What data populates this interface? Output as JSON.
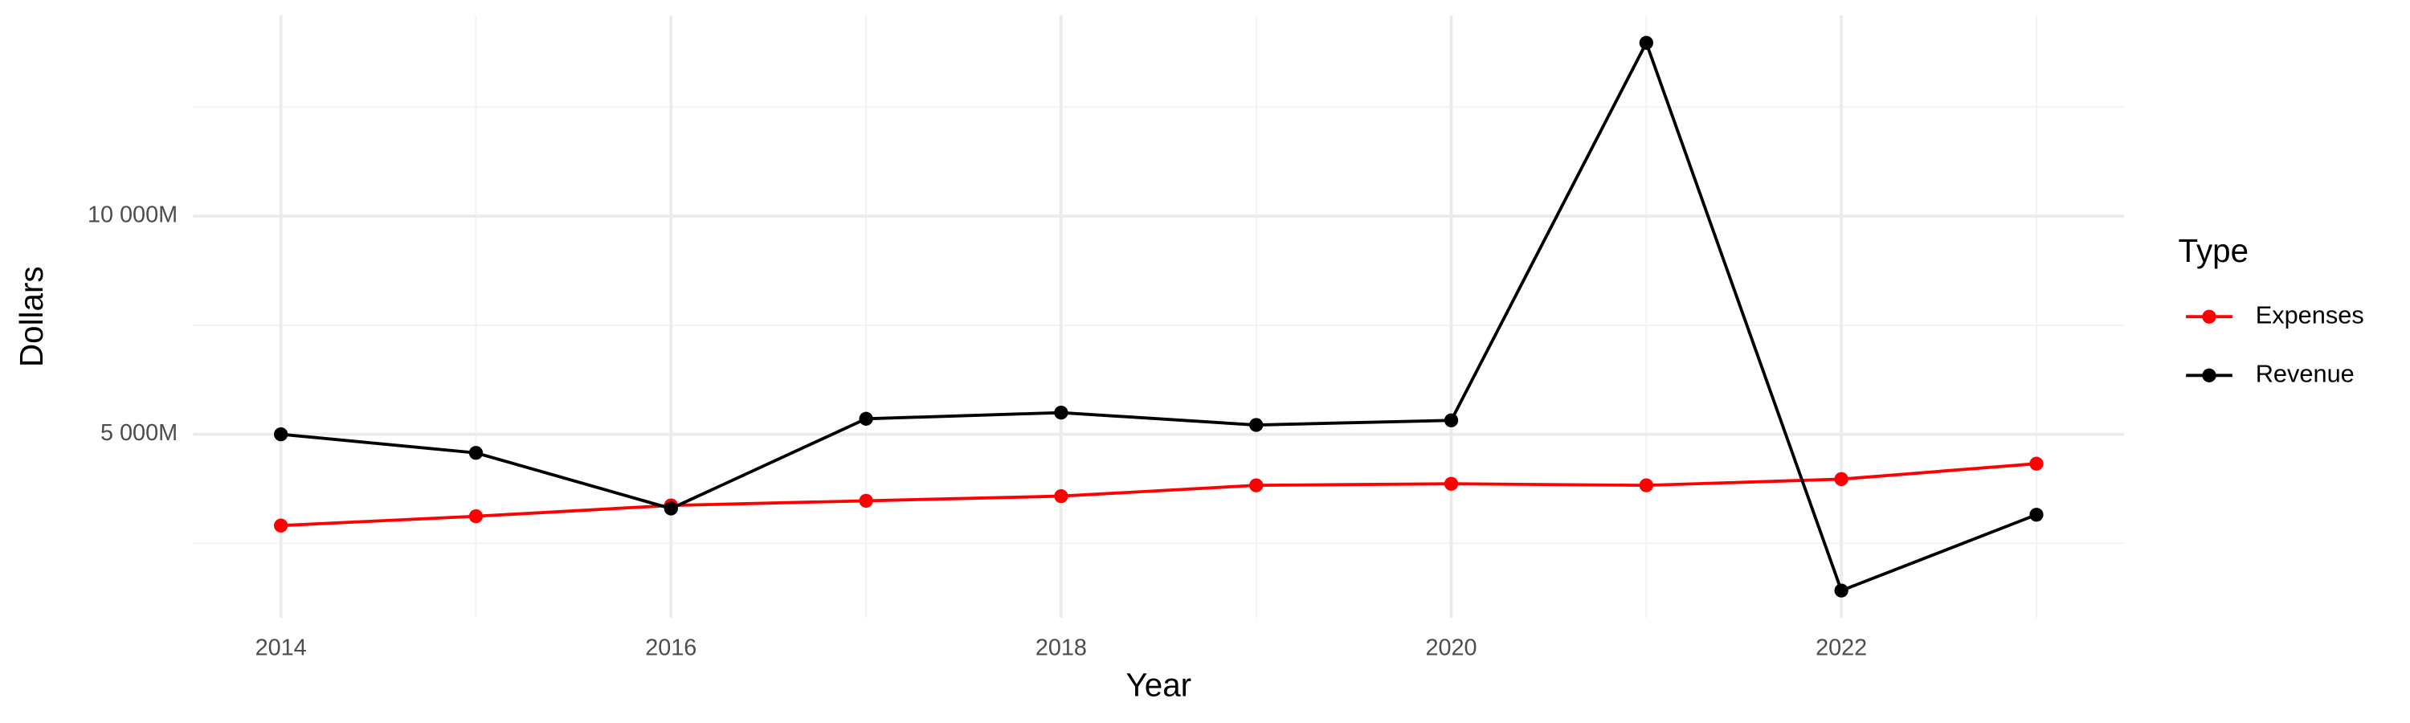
{
  "chart_data": {
    "type": "line",
    "x_label": "Year",
    "y_label": "Dollars",
    "legend_title": "Type",
    "legend_position": "right",
    "x": [
      2014,
      2015,
      2016,
      2017,
      2018,
      2019,
      2020,
      2021,
      2022,
      2023
    ],
    "series": [
      {
        "name": "Expenses",
        "color": "#ff0000",
        "values": [
          2908,
          3121,
          3369,
          3475,
          3582,
          3830,
          3865,
          3830,
          3972,
          4326
        ]
      },
      {
        "name": "Revenue",
        "color": "#000000",
        "values": [
          5000,
          4574,
          3298,
          5355,
          5496,
          5213,
          5319,
          13972,
          1418,
          3156
        ]
      }
    ],
    "xlim": [
      2013.55,
      2023.45
    ],
    "xticks": [
      2014,
      2016,
      2018,
      2020,
      2022
    ],
    "minor_xticks": [
      2015,
      2017,
      2019,
      2021,
      2023
    ],
    "ylim": [
      790,
      14600
    ],
    "yticks": [
      {
        "value": 5000,
        "label": "5 000M"
      },
      {
        "value": 10000,
        "label": "10 000M"
      }
    ],
    "minor_yticks": [
      2500,
      7500,
      12500
    ],
    "grid": true
  }
}
